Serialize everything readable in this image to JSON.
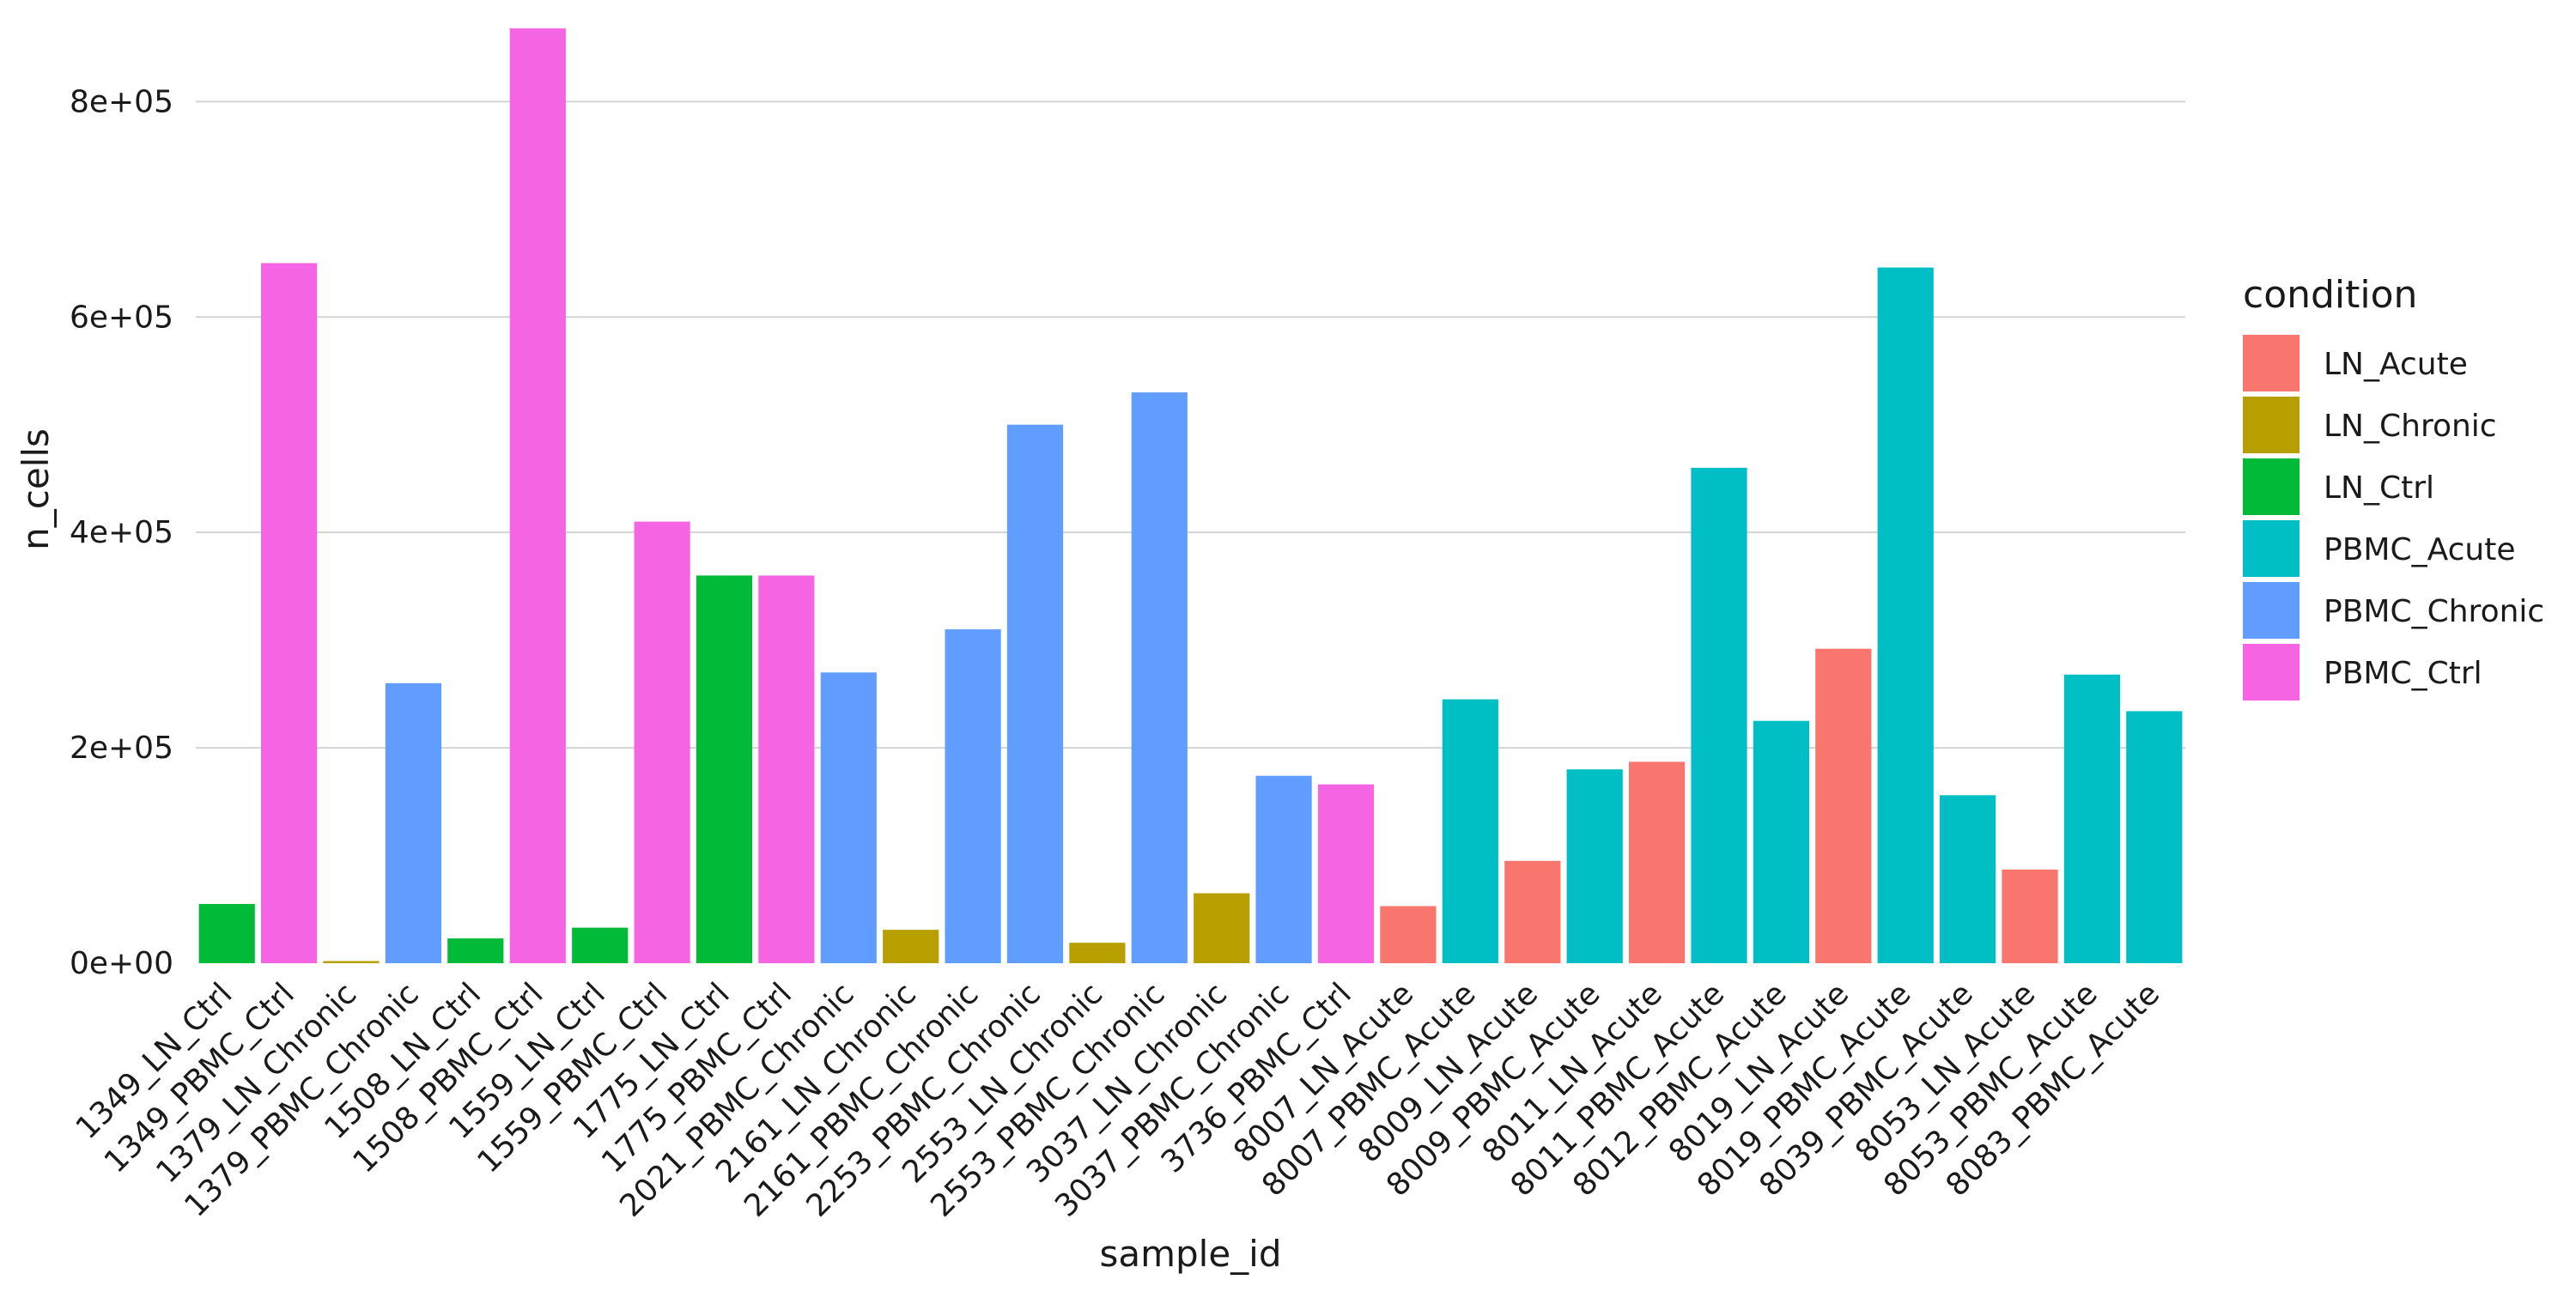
{
  "chart_data": {
    "type": "bar",
    "xlabel": "sample_id",
    "ylabel": "n_cells",
    "ylim": [
      0,
      880000
    ],
    "yticks": [
      0,
      200000,
      400000,
      600000,
      800000
    ],
    "ytick_labels": [
      "0e+00",
      "2e+05",
      "4e+05",
      "6e+05",
      "8e+05"
    ],
    "grid": "horizontal major",
    "legend": {
      "title": "condition",
      "placement": "right",
      "entries": [
        {
          "name": "LN_Acute",
          "color": "#F8766D"
        },
        {
          "name": "LN_Chronic",
          "color": "#B79F00"
        },
        {
          "name": "LN_Ctrl",
          "color": "#00BA38"
        },
        {
          "name": "PBMC_Acute",
          "color": "#00BFC4"
        },
        {
          "name": "PBMC_Chronic",
          "color": "#619CFF"
        },
        {
          "name": "PBMC_Ctrl",
          "color": "#F564E3"
        }
      ]
    },
    "categories": [
      "1349_LN_Ctrl",
      "1349_PBMC_Ctrl",
      "1379_LN_Chronic",
      "1379_PBMC_Chronic",
      "1508_LN_Ctrl",
      "1508_PBMC_Ctrl",
      "1559_LN_Ctrl",
      "1559_PBMC_Ctrl",
      "1775_LN_Ctrl",
      "1775_PBMC_Ctrl",
      "2021_PBMC_Chronic",
      "2161_LN_Chronic",
      "2161_PBMC_Chronic",
      "2253_PBMC_Chronic",
      "2553_LN_Chronic",
      "2553_PBMC_Chronic",
      "3037_LN_Chronic",
      "3037_PBMC_Chronic",
      "3736_PBMC_Ctrl",
      "8007_LN_Acute",
      "8007_PBMC_Acute",
      "8009_LN_Acute",
      "8009_PBMC_Acute",
      "8011_LN_Acute",
      "8011_PBMC_Acute",
      "8012_PBMC_Acute",
      "8019_LN_Acute",
      "8019_PBMC_Acute",
      "8039_PBMC_Acute",
      "8053_LN_Acute",
      "8053_PBMC_Acute",
      "8083_PBMC_Acute"
    ],
    "conditions": [
      "LN_Ctrl",
      "PBMC_Ctrl",
      "LN_Chronic",
      "PBMC_Chronic",
      "LN_Ctrl",
      "PBMC_Ctrl",
      "LN_Ctrl",
      "PBMC_Ctrl",
      "LN_Ctrl",
      "PBMC_Ctrl",
      "PBMC_Chronic",
      "LN_Chronic",
      "PBMC_Chronic",
      "PBMC_Chronic",
      "LN_Chronic",
      "PBMC_Chronic",
      "LN_Chronic",
      "PBMC_Chronic",
      "PBMC_Ctrl",
      "LN_Acute",
      "PBMC_Acute",
      "LN_Acute",
      "PBMC_Acute",
      "LN_Acute",
      "PBMC_Acute",
      "PBMC_Acute",
      "LN_Acute",
      "PBMC_Acute",
      "PBMC_Acute",
      "LN_Acute",
      "PBMC_Acute",
      "PBMC_Acute"
    ],
    "values": [
      55000,
      650000,
      2000,
      260000,
      23000,
      868000,
      33000,
      410000,
      360000,
      360000,
      270000,
      31000,
      310000,
      500000,
      19000,
      530000,
      65000,
      174000,
      166000,
      53000,
      245000,
      95000,
      180000,
      187000,
      460000,
      225000,
      292000,
      646000,
      156000,
      87000,
      268000,
      234000
    ]
  }
}
